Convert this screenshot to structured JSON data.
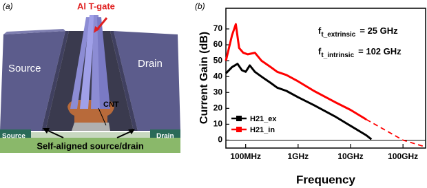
{
  "diagram": {
    "panel_label": "(a)",
    "gate_label": "Al T-gate",
    "source_label": "Source",
    "drain_label": "Drain",
    "cnt_label": "CNT",
    "source_contact_label": "Source",
    "drain_contact_label": "Drain",
    "caption": "Self-aligned source/drain"
  },
  "chart_data": {
    "type": "line",
    "panel_label": "(b)",
    "x_label": "Frequency",
    "y_label": "Current Gain (dB)",
    "log_x": true,
    "xlim": [
      42000000,
      270000000000
    ],
    "xticks": [
      {
        "value": 100000000,
        "label": "100MHz"
      },
      {
        "value": 1000000000,
        "label": "1GHz"
      },
      {
        "value": 10000000000,
        "label": "10GHz"
      },
      {
        "value": 100000000000,
        "label": "100GHz"
      }
    ],
    "ylim": [
      -5,
      83
    ],
    "yticks": [
      0,
      10,
      20,
      30,
      40,
      50,
      60,
      70
    ],
    "grid": false,
    "legend": "lower left",
    "series": [
      {
        "name": "H21_ex",
        "color": "#000000",
        "x": [
          42000000,
          55000000,
          70000000,
          85000000,
          100000000,
          120000000,
          150000000,
          200000000,
          300000000,
          400000000,
          600000000,
          1000000000,
          2000000000,
          5000000000,
          10000000000,
          20000000000,
          25000000000
        ],
        "values": [
          42,
          46,
          48,
          44,
          43,
          47,
          43,
          40,
          36,
          33,
          31,
          27,
          22,
          15,
          9,
          3,
          0.5
        ]
      },
      {
        "name": "H21_in",
        "color": "#ff0000",
        "x": [
          42000000,
          55000000,
          65000000,
          75000000,
          90000000,
          110000000,
          150000000,
          200000000,
          300000000,
          400000000,
          600000000,
          1000000000,
          2000000000,
          5000000000,
          10000000000,
          20000000000
        ],
        "values": [
          50,
          66,
          73,
          58,
          55,
          54,
          55,
          50,
          46,
          43,
          41,
          37,
          31,
          24,
          19,
          13
        ]
      }
    ],
    "extrapolation": {
      "color": "#ff0000",
      "x": [
        20000000000,
        100000000000,
        250000000000
      ],
      "values": [
        13,
        0,
        -4
      ]
    },
    "annotations": [
      {
        "main": "f",
        "sub": "t_extrinsic",
        "text": "=  25 GHz"
      },
      {
        "main": "f",
        "sub": "t_intrinsic",
        "text": "= 102 GHz"
      }
    ]
  }
}
